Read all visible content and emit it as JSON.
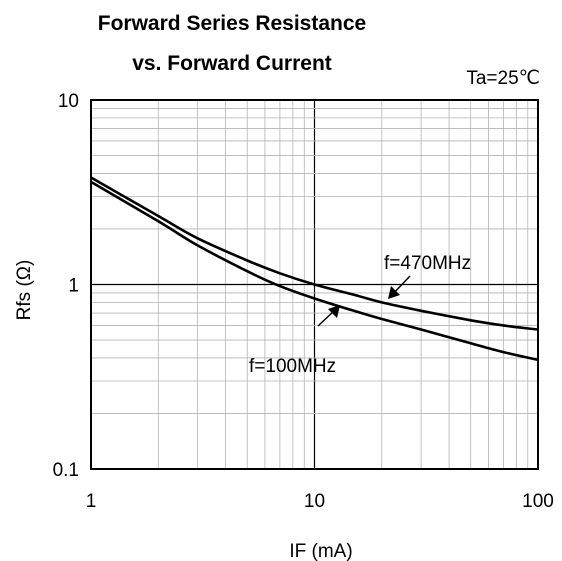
{
  "chart_data": {
    "type": "line",
    "title": "Forward Series Resistance",
    "subtitle": "vs. Forward Current",
    "condition": "Ta=25℃",
    "xlabel": "IF (mA)",
    "ylabel": "Rfs (Ω)",
    "x_scale": "log",
    "y_scale": "log",
    "xlim": [
      1,
      100
    ],
    "ylim": [
      0.1,
      10
    ],
    "x_tick_labels": [
      "1",
      "10",
      "100"
    ],
    "y_tick_labels": [
      "0.1",
      "1",
      "10"
    ],
    "grid": true,
    "series": [
      {
        "name": "f=470MHz",
        "x": [
          1,
          2,
          3,
          5,
          7,
          10,
          15,
          20,
          30,
          50,
          70,
          100
        ],
        "y": [
          3.8,
          2.35,
          1.78,
          1.35,
          1.15,
          1.0,
          0.88,
          0.8,
          0.72,
          0.64,
          0.6,
          0.57
        ]
      },
      {
        "name": "f=100MHz",
        "x": [
          1,
          2,
          3,
          5,
          7,
          10,
          15,
          20,
          30,
          50,
          70,
          100
        ],
        "y": [
          3.6,
          2.2,
          1.63,
          1.18,
          0.98,
          0.84,
          0.72,
          0.65,
          0.57,
          0.48,
          0.43,
          0.39
        ]
      }
    ]
  }
}
